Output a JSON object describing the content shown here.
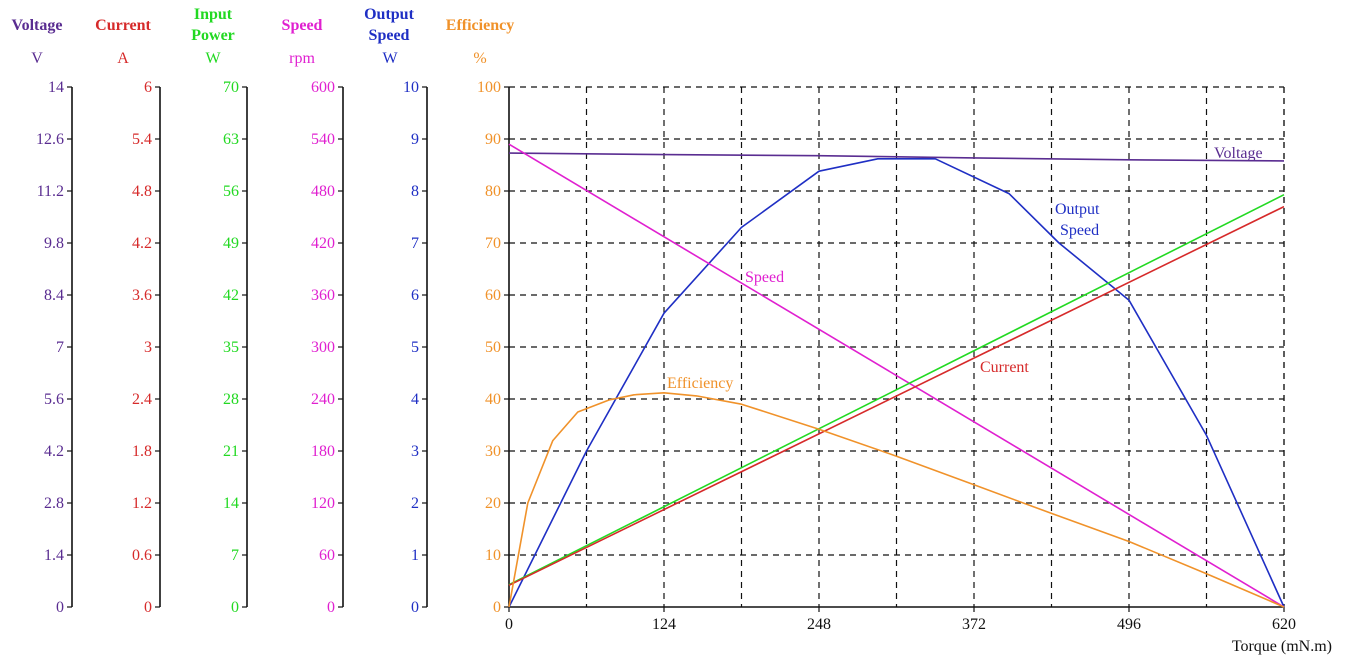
{
  "chart_data": {
    "type": "line",
    "x": {
      "label": "Torque  (mN.m)",
      "range": [
        0,
        620
      ],
      "ticks": [
        0,
        124,
        248,
        372,
        496,
        620
      ],
      "tick_labels": [
        "0",
        "124",
        "248",
        "372",
        "496",
        "620"
      ]
    },
    "grid": true,
    "axes": [
      {
        "key": "voltage",
        "title": [
          "Voltage"
        ],
        "unit": "V",
        "color": "#5a2d91",
        "range": [
          0,
          14
        ],
        "ticks": [
          "0",
          "1.4",
          "2.8",
          "4.2",
          "5.6",
          "7",
          "8.4",
          "9.8",
          "11.2",
          "12.6",
          "14"
        ]
      },
      {
        "key": "current",
        "title": [
          "Current"
        ],
        "unit": "A",
        "color": "#d62a2a",
        "range": [
          0,
          6
        ],
        "ticks": [
          "0",
          "0.6",
          "1.2",
          "1.8",
          "2.4",
          "3",
          "3.6",
          "4.2",
          "4.8",
          "5.4",
          "6"
        ]
      },
      {
        "key": "input_power",
        "title": [
          "Input",
          "Power"
        ],
        "unit": "W",
        "color": "#22d922",
        "range": [
          0,
          70
        ],
        "ticks": [
          "0",
          "7",
          "14",
          "21",
          "28",
          "35",
          "42",
          "49",
          "56",
          "63",
          "70"
        ]
      },
      {
        "key": "speed",
        "title": [
          "Speed"
        ],
        "unit": "rpm",
        "color": "#e020d0",
        "range": [
          0,
          600
        ],
        "ticks": [
          "0",
          "60",
          "120",
          "180",
          "240",
          "300",
          "360",
          "420",
          "480",
          "540",
          "600"
        ]
      },
      {
        "key": "output",
        "title": [
          "Output",
          "Speed"
        ],
        "unit": "W",
        "color": "#1f2fc4",
        "range": [
          0,
          10
        ],
        "ticks": [
          "0",
          "1",
          "2",
          "3",
          "4",
          "5",
          "6",
          "7",
          "8",
          "9",
          "10"
        ]
      },
      {
        "key": "efficiency",
        "title": [
          "Efficiency"
        ],
        "unit": "%",
        "color": "#f0922a",
        "range": [
          0,
          100
        ],
        "ticks": [
          "0",
          "10",
          "20",
          "30",
          "40",
          "50",
          "60",
          "70",
          "80",
          "90",
          "100"
        ]
      }
    ],
    "series": [
      {
        "key": "voltage",
        "label": [
          "Voltage"
        ],
        "color": "#5a2d91",
        "points": [
          [
            0,
            12.22
          ],
          [
            124,
            12.18
          ],
          [
            248,
            12.15
          ],
          [
            372,
            12.09
          ],
          [
            496,
            12.04
          ],
          [
            620,
            12.01
          ]
        ]
      },
      {
        "key": "output",
        "label": [
          "Output",
          "Speed"
        ],
        "color": "#1f2fc4",
        "points": [
          [
            0,
            0
          ],
          [
            62,
            3.0
          ],
          [
            124,
            5.65
          ],
          [
            186,
            7.3
          ],
          [
            248,
            8.38
          ],
          [
            295,
            8.62
          ],
          [
            341,
            8.62
          ],
          [
            400,
            7.95
          ],
          [
            440,
            7.0
          ],
          [
            496,
            5.9
          ],
          [
            558,
            3.3
          ],
          [
            620,
            0
          ]
        ]
      },
      {
        "key": "speed",
        "label": [
          "Speed"
        ],
        "color": "#e020d0",
        "points": [
          [
            0,
            534
          ],
          [
            620,
            0
          ]
        ]
      },
      {
        "key": "input_power",
        "label": [],
        "color": "#22d922",
        "points": [
          [
            0,
            3.0
          ],
          [
            620,
            55.5
          ]
        ]
      },
      {
        "key": "current",
        "label": [
          "Current"
        ],
        "color": "#d62a2a",
        "points": [
          [
            0,
            0.25
          ],
          [
            620,
            4.62
          ]
        ]
      },
      {
        "key": "efficiency",
        "label": [
          "Efficiency"
        ],
        "color": "#f0922a",
        "points": [
          [
            0,
            0
          ],
          [
            15,
            20
          ],
          [
            35,
            32
          ],
          [
            55,
            37.5
          ],
          [
            80,
            39.8
          ],
          [
            100,
            40.8
          ],
          [
            124,
            41.2
          ],
          [
            150,
            40.6
          ],
          [
            186,
            39.0
          ],
          [
            248,
            34.2
          ],
          [
            310,
            29.0
          ],
          [
            372,
            23.5
          ],
          [
            434,
            18.0
          ],
          [
            496,
            12.6
          ],
          [
            558,
            6.4
          ],
          [
            620,
            0
          ]
        ]
      }
    ]
  }
}
